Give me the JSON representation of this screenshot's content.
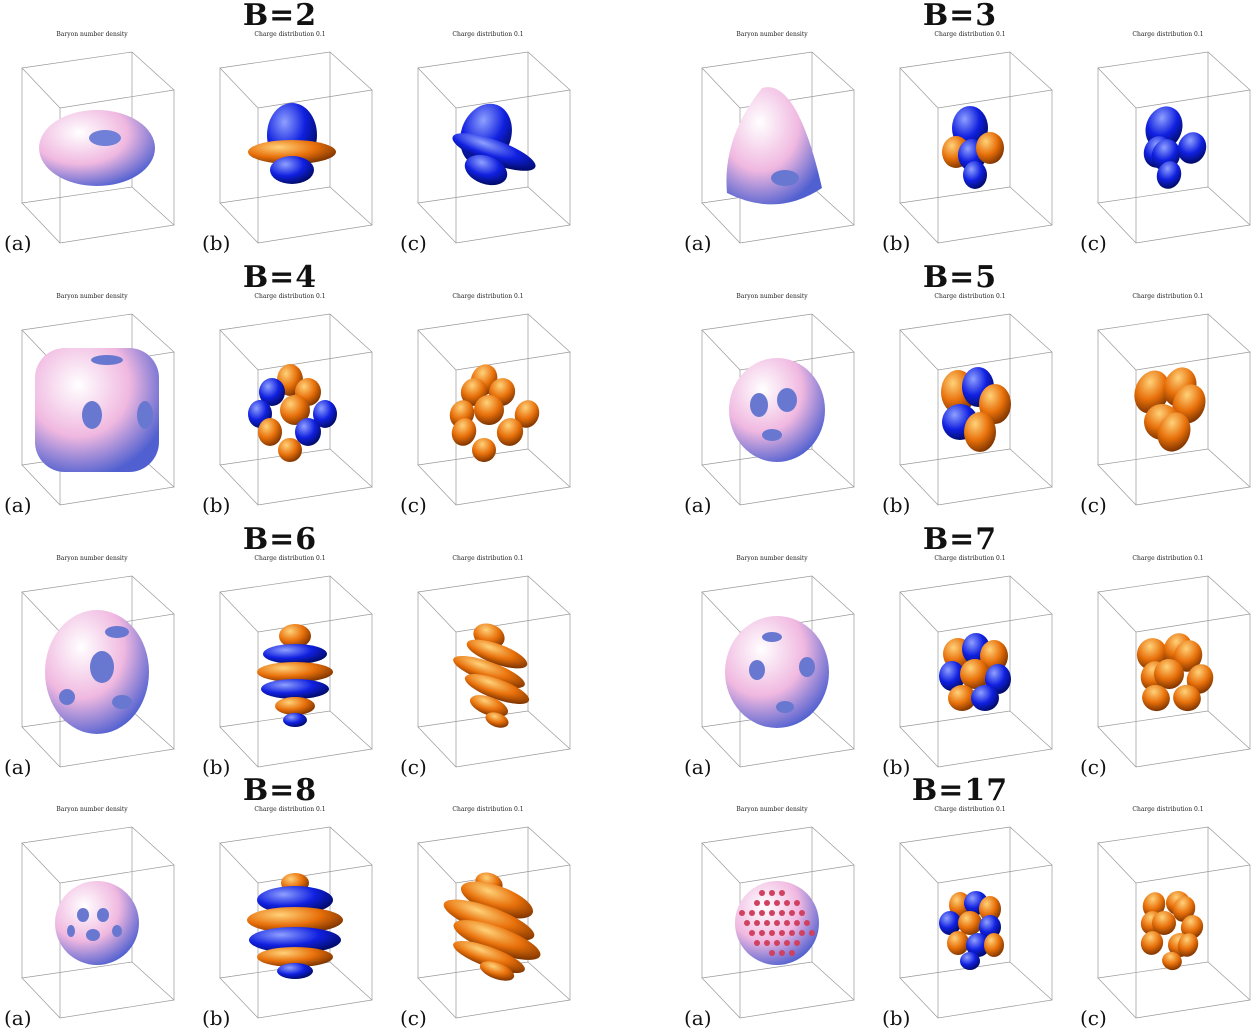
{
  "colors": {
    "positive": "#e8700a",
    "negative": "#1020e0",
    "density": "#f2c8e8"
  },
  "groups": [
    {
      "title": "B=2",
      "row": 0,
      "col": 0,
      "shape": "torus"
    },
    {
      "title": "B=3",
      "row": 0,
      "col": 1,
      "shape": "tetra"
    },
    {
      "title": "B=4",
      "row": 1,
      "col": 0,
      "shape": "cube"
    },
    {
      "title": "B=5",
      "row": 1,
      "col": 1,
      "shape": "d2d"
    },
    {
      "title": "B=6",
      "row": 2,
      "col": 0,
      "shape": "d4d"
    },
    {
      "title": "B=7",
      "row": 2,
      "col": 1,
      "shape": "dodeca"
    },
    {
      "title": "B=8",
      "row": 3,
      "col": 0,
      "shape": "d6d"
    },
    {
      "title": "B=17",
      "row": 3,
      "col": 1,
      "shape": "fullerene"
    }
  ],
  "panels": [
    {
      "label": "(a)",
      "caption": "Baryon number density"
    },
    {
      "label": "(b)",
      "caption": "Charge distribution 0.1"
    },
    {
      "label": "(c)",
      "caption": "Charge distribution 0.1"
    }
  ]
}
